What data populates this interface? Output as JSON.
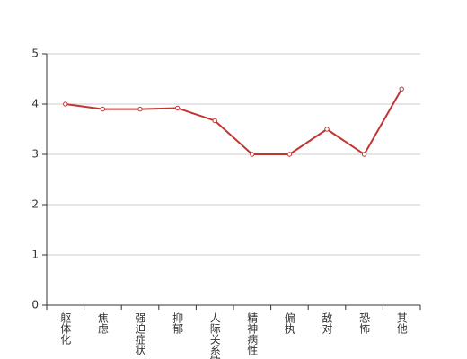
{
  "chart_data": {
    "type": "line",
    "categories": [
      "躯体化",
      "焦虑",
      "强迫症状",
      "抑郁",
      "人际关系敏感",
      "精神病性",
      "偏执",
      "敌对",
      "恐怖",
      "其他"
    ],
    "series": [
      {
        "color": "#c23531",
        "values": [
          4.0,
          3.9,
          3.9,
          3.92,
          3.67,
          3.0,
          3.0,
          3.5,
          3.0,
          4.3
        ]
      }
    ],
    "ylim": [
      0,
      5
    ],
    "yticks": [
      0,
      1,
      2,
      3,
      4,
      5
    ],
    "grid": true
  }
}
